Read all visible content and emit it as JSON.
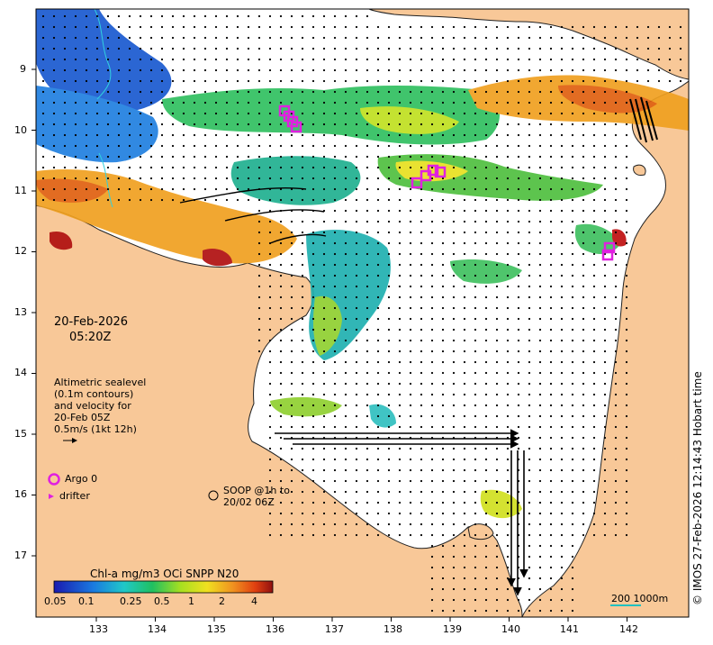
{
  "datetime": {
    "date": "20-Feb-2026",
    "time": "05:20Z"
  },
  "legend": {
    "altimetry_lines": [
      "Altimetric sealevel",
      "(0.1m contours)",
      "and velocity for",
      "20-Feb 05Z",
      "0.5m/s (1kt 12h)"
    ],
    "argo": "Argo 0",
    "drifter": "drifter",
    "soop_lines": [
      "SOOP @1h to",
      "20/02 06Z"
    ]
  },
  "colorbar": {
    "title": "Chl-a mg/m3 OCi SNPP N20",
    "ticks": [
      "0.05",
      "0.1",
      "0.25",
      "0.5",
      "1",
      "2",
      "4"
    ]
  },
  "scale_bar": {
    "label": "200  1000m"
  },
  "copyright": "© IMOS 27-Feb-2026 12:14:43 Hobart time",
  "axes": {
    "lon_ticks": [
      "133",
      "134",
      "135",
      "136",
      "137",
      "138",
      "139",
      "140",
      "141",
      "142"
    ],
    "lat_ticks": [
      "9",
      "10",
      "11",
      "12",
      "13",
      "14",
      "15",
      "16",
      "17"
    ]
  },
  "colors": {
    "land": "#f8c898",
    "ocean": "#ffffff",
    "argo": "#e020e0",
    "drifter": "#e020e0"
  }
}
